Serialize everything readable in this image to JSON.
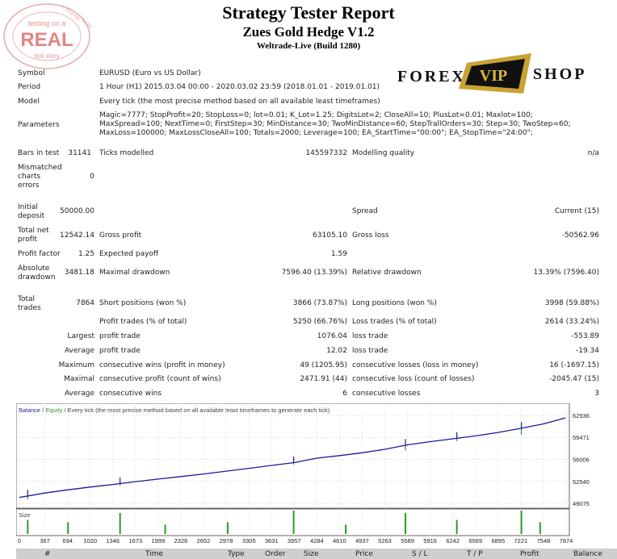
{
  "header": {
    "title": "Strategy Tester Report",
    "ea_name": "Zues Gold Hedge V1.2",
    "server": "Weltrade-Live (Build 1280)"
  },
  "stamp": {
    "line1": "testing on a",
    "big": "REAL",
    "line3": "tick story",
    "ring": "is Strategy Tester"
  },
  "logo": {
    "left": "FOREX",
    "mid": "VIP",
    "right": "SHOP"
  },
  "info": {
    "symbol_label": "Symbol",
    "symbol_value": "EURUSD (Euro vs US Dollar)",
    "period_label": "Period",
    "period_value": "1 Hour (H1) 2015.03.04 00:00 - 2020.03.02 23:59 (2018.01.01 - 2019.01.01)",
    "model_label": "Model",
    "model_value": "Every tick (the most precise method based on all available least timeframes)",
    "params_label": "Parameters",
    "params_value": "Magic=7777; StopProfit=20; StopLoss=0; lot=0.01; K_Lot=1.25; DigitsLot=2; CloseAll=10; PlusLot=0.01; Maxlot=100; MaxSpread=100; NextTime=0; FirstStep=30; MinDistance=30; TwoMinDistance=60; StepTrallOrders=30; Step=30; TwoStep=60; MaxLoss=100000; MaxLossCloseAll=100; Totals=2000; Leverage=100; EA_StartTime=\"00:00\"; EA_StopTime=\"24:00\";"
  },
  "stats": {
    "bars_label": "Bars in test",
    "bars_value": "31141",
    "ticks_label": "Ticks modelled",
    "ticks_value": "145597332",
    "quality_label": "Modelling quality",
    "quality_value": "n/a",
    "mismatch_l1": "Mismatched",
    "mismatch_l2": "charts",
    "mismatch_l3": "errors",
    "mismatch_value": "0",
    "initdep_l1": "Initial",
    "initdep_l2": "deposit",
    "initdep_value": "50000.00",
    "spread_label": "Spread",
    "spread_value": "Current (15)",
    "netprofit_l1": "Total net",
    "netprofit_l2": "profit",
    "netprofit_value": "12542.14",
    "grossprofit_label": "Gross profit",
    "grossprofit_value": "63105.10",
    "grossloss_label": "Gross loss",
    "grossloss_value": "-50562.96",
    "pf_label": "Profit factor",
    "pf_value": "1.25",
    "ep_label": "Expected payoff",
    "ep_value": "1.59",
    "absdd_l1": "Absolute",
    "absdd_l2": "drawdown",
    "absdd_value": "3481.18",
    "maxdd_label": "Maximal drawdown",
    "maxdd_value": "7596.40 (13.39%)",
    "reldd_label": "Relative drawdown",
    "reldd_value": "13.39% (7596.40)",
    "trades_l1": "Total",
    "trades_l2": "trades",
    "trades_value": "7864",
    "short_label": "Short positions (won %)",
    "short_value": "3866 (73.87%)",
    "long_label": "Long positions (won %)",
    "long_value": "3998 (59.88%)",
    "pt_label": "Profit trades (% of total)",
    "pt_value": "5250 (66.76%)",
    "lt_label": "Loss trades (% of total)",
    "lt_value": "2614 (33.24%)",
    "largest_label": "Largest",
    "lprofit_label": "profit trade",
    "lprofit_value": "1076.04",
    "lloss_label": "loss trade",
    "lloss_value": "-553.89",
    "average_label": "Average",
    "aprofit_label": "profit trade",
    "aprofit_value": "12.02",
    "aloss_label": "loss trade",
    "aloss_value": "-19.34",
    "maximum_label": "Maximum",
    "cw_label": "consecutive wins (profit in money)",
    "cw_value": "49 (1205.95)",
    "cl_label": "consecutive losses (loss in money)",
    "cl_value": "16 (-1697.15)",
    "maximal_label": "Maximal",
    "cp_label": "consecutive profit (count of wins)",
    "cp_value": "2471.91 (44)",
    "clc_label": "consecutive loss (count of losses)",
    "clc_value": "-2045.47 (15)",
    "average2_label": "Average",
    "acw_label": "consecutive wins",
    "acw_value": "6",
    "acl_label": "consecutive losses",
    "acl_value": "3"
  },
  "chart_data": {
    "type": "line",
    "legend_balance": "Balance",
    "legend_sep": " / ",
    "legend_equity": "Equity",
    "legend_rest": " / Every tick (the most precise method based on all available least timeframes to generate each tick)",
    "size_label": "Size",
    "y_ticks": [
      "62936",
      "59471",
      "56006",
      "52540",
      "49075"
    ],
    "x_ticks": [
      "0",
      "367",
      "694",
      "1020",
      "1346",
      "1673",
      "1999",
      "2326",
      "2652",
      "2978",
      "3305",
      "3631",
      "3957",
      "4284",
      "4610",
      "4937",
      "5263",
      "5589",
      "5916",
      "6242",
      "6569",
      "6895",
      "7221",
      "7548",
      "7874"
    ],
    "ylim": [
      49075,
      62936
    ],
    "xlim": [
      0,
      7874
    ],
    "series": [
      {
        "name": "Balance",
        "color": "#1a1a9a",
        "x": [
          0,
          367,
          694,
          1020,
          1346,
          1673,
          1999,
          2326,
          2652,
          2978,
          3305,
          3631,
          3957,
          4284,
          4610,
          4937,
          5263,
          5589,
          5916,
          6242,
          6569,
          6895,
          7221,
          7548,
          7864
        ],
        "y": [
          50000,
          50700,
          51200,
          51650,
          52050,
          52500,
          52900,
          53300,
          53700,
          54150,
          54600,
          55050,
          55500,
          56200,
          56600,
          57050,
          57600,
          58300,
          58800,
          59250,
          59700,
          60250,
          60900,
          61600,
          62542
        ]
      },
      {
        "name": "Equity",
        "color": "#2a9a2a",
        "dips": [
          [
            120,
            49700
          ],
          [
            1450,
            51900
          ],
          [
            3950,
            55200
          ],
          [
            5560,
            57400
          ],
          [
            6300,
            58900
          ],
          [
            7230,
            59900
          ]
        ]
      }
    ],
    "size_bars": [
      [
        120,
        0.6
      ],
      [
        700,
        0.5
      ],
      [
        1450,
        0.9
      ],
      [
        2100,
        0.4
      ],
      [
        3000,
        0.5
      ],
      [
        3950,
        1.0
      ],
      [
        4700,
        0.4
      ],
      [
        5560,
        0.9
      ],
      [
        6300,
        0.6
      ],
      [
        7230,
        1.0
      ],
      [
        7500,
        0.5
      ]
    ]
  },
  "table": {
    "headers": [
      "#",
      "Time",
      "Type",
      "Order",
      "Size",
      "Price",
      "S / L",
      "T / P",
      "Profit",
      "Balance"
    ]
  }
}
